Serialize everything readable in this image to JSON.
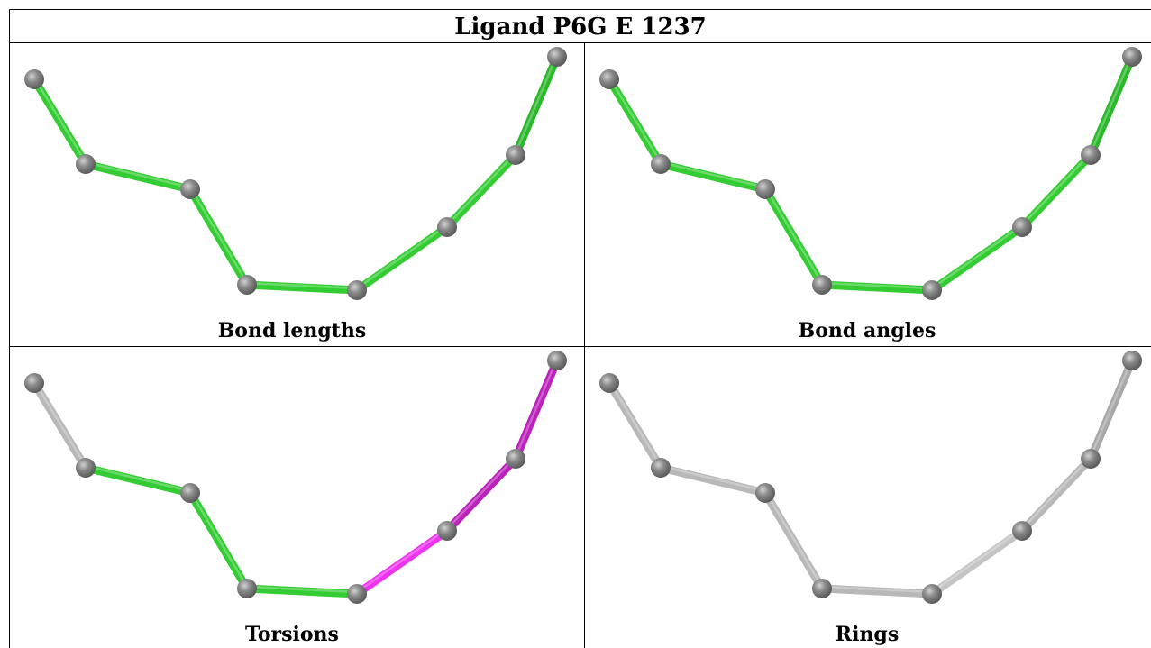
{
  "title": "Ligand P6G E 1237",
  "panels": [
    {
      "caption": "Bond lengths",
      "bond_colors": [
        "#33cc33",
        "#33cc33",
        "#33cc33",
        "#33cc33",
        "#33cc33",
        "#33cc33",
        "#2bb82b",
        "#33cc33"
      ]
    },
    {
      "caption": "Bond angles",
      "bond_colors": [
        "#33cc33",
        "#33cc33",
        "#33cc33",
        "#33cc33",
        "#33cc33",
        "#33cc33",
        "#2bb82b",
        "#33cc33"
      ]
    },
    {
      "caption": "Torsions",
      "bond_colors": [
        "#b8b8b8",
        "#33cc33",
        "#33cc33",
        "#33cc33",
        "#ee33ee",
        "#bb22bb",
        "#bb22bb",
        "#c4c4c4"
      ]
    },
    {
      "caption": "Rings",
      "bond_colors": [
        "#b8b8b8",
        "#b8b8b8",
        "#b8b8b8",
        "#b8b8b8",
        "#c4c4c4",
        "#b8b8b8",
        "#a8a8a8",
        "#c4c4c4"
      ]
    }
  ],
  "colors": {
    "atom": "#7a7a7a",
    "atom_highlight": "#cfcfcf",
    "rule": "#000000"
  }
}
